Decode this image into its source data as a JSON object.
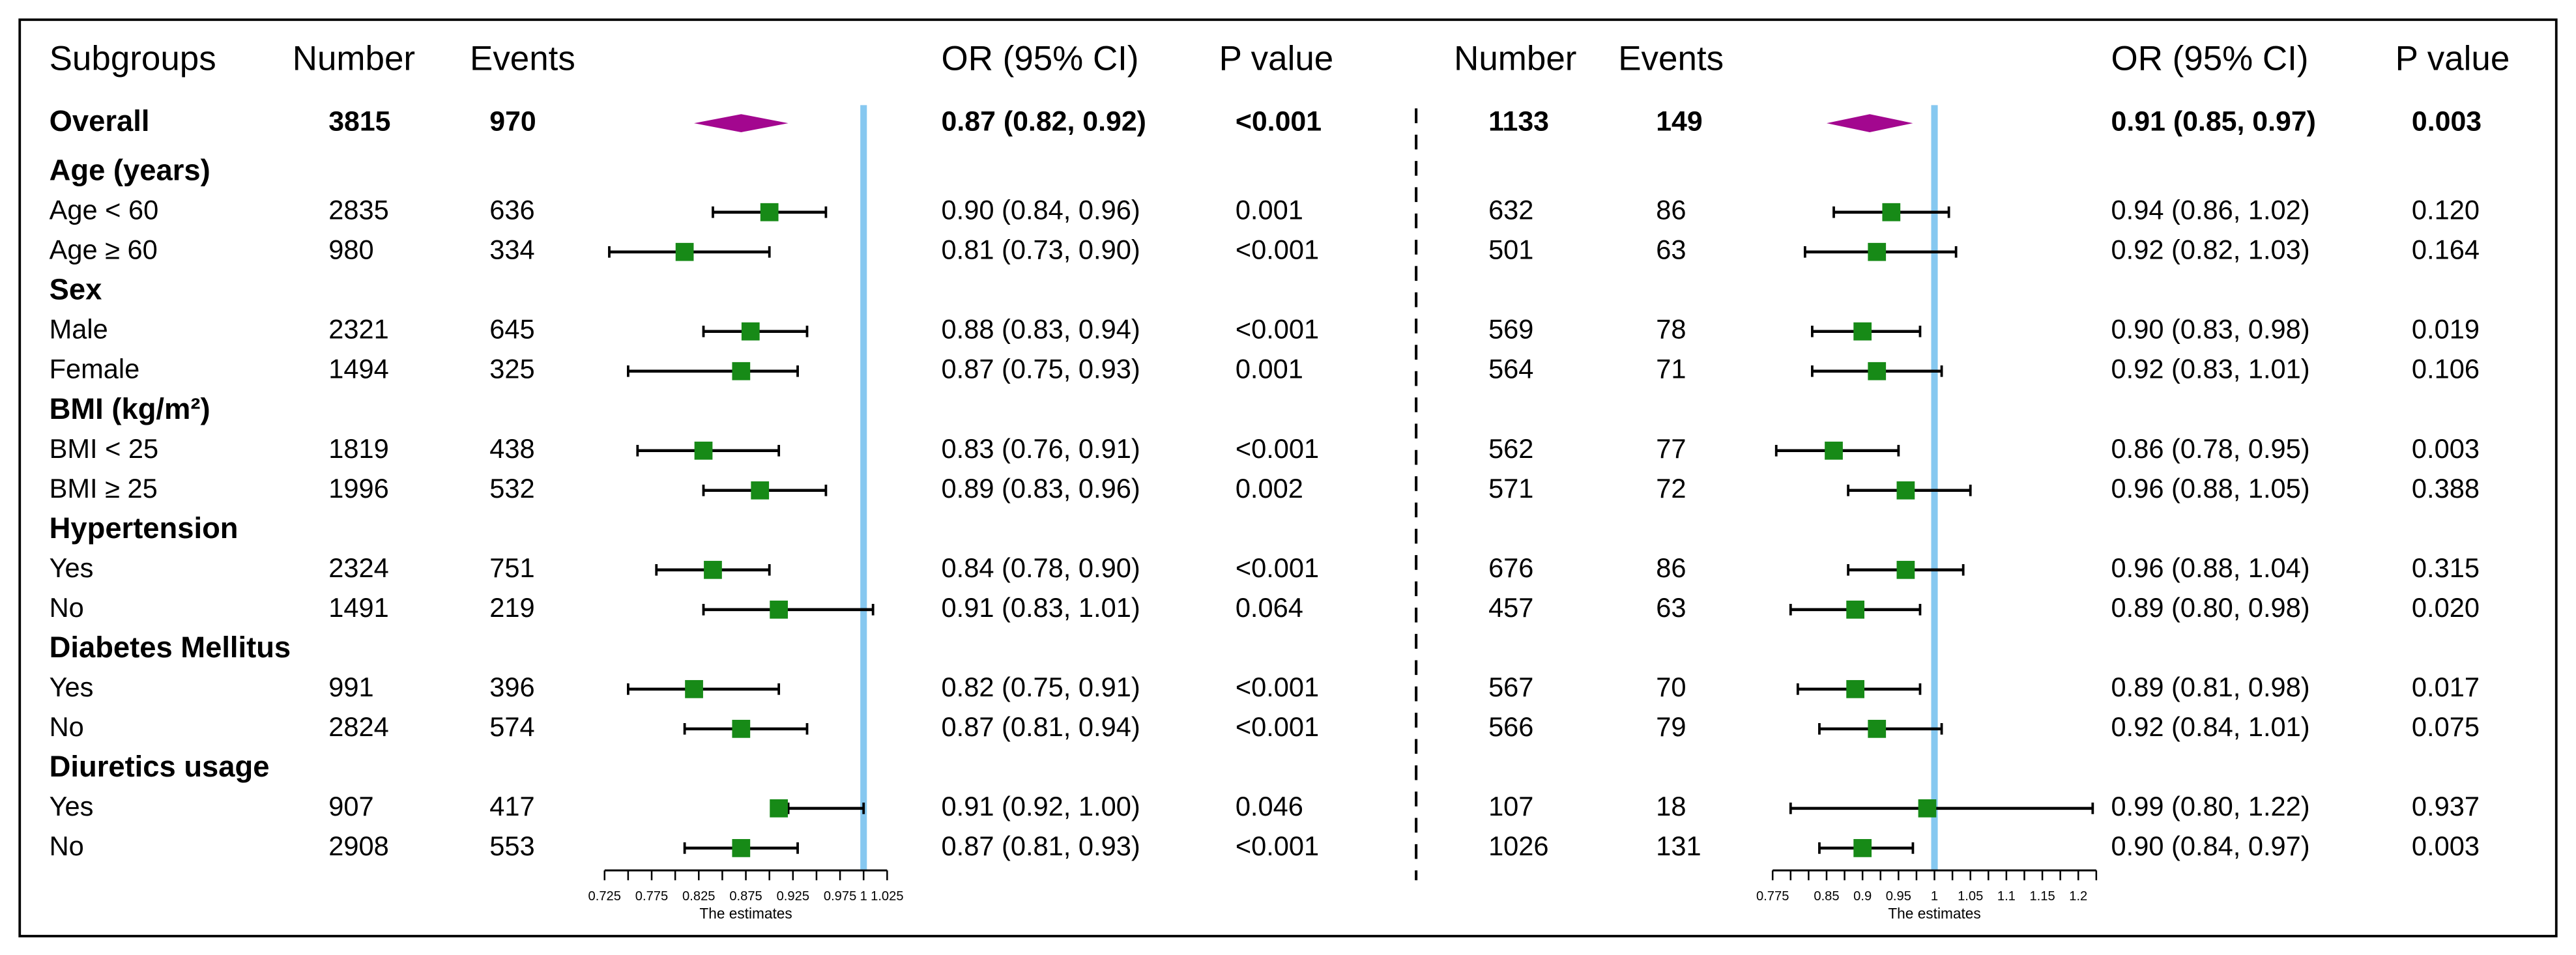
{
  "subgroups": {
    "header": "Subgroups",
    "rows": [
      {
        "label": "Overall",
        "bold": true
      },
      {
        "label": "Age (years)",
        "bold": true
      },
      {
        "label": "Age < 60",
        "bold": false
      },
      {
        "label": "Age ≥ 60",
        "bold": false
      },
      {
        "label": "Sex",
        "bold": true
      },
      {
        "label": "Male",
        "bold": false
      },
      {
        "label": "Female",
        "bold": false
      },
      {
        "label": "BMI (kg/m²)",
        "bold": true
      },
      {
        "label": "BMI < 25",
        "bold": false
      },
      {
        "label": "BMI ≥ 25",
        "bold": false
      },
      {
        "label": "Hypertension",
        "bold": true
      },
      {
        "label": "Yes",
        "bold": false
      },
      {
        "label": "No",
        "bold": false
      },
      {
        "label": "Diabetes Mellitus",
        "bold": true
      },
      {
        "label": "Yes",
        "bold": false
      },
      {
        "label": "No",
        "bold": false
      },
      {
        "label": "Diuretics usage",
        "bold": true
      },
      {
        "label": "Yes",
        "bold": false
      },
      {
        "label": "No",
        "bold": false
      }
    ]
  },
  "chart_data": [
    {
      "type": "forest",
      "headers": {
        "number": "Number",
        "events": "Events",
        "estimate": "OR (95% CI)",
        "p_value": "P value"
      },
      "number": [
        3815,
        null,
        2835,
        980,
        null,
        2321,
        1494,
        null,
        1819,
        1996,
        null,
        2324,
        1491,
        null,
        991,
        2824,
        null,
        907,
        2908
      ],
      "events": [
        970,
        null,
        636,
        334,
        null,
        645,
        325,
        null,
        438,
        532,
        null,
        751,
        219,
        null,
        396,
        574,
        null,
        417,
        553
      ],
      "values": [
        0.87,
        null,
        0.9,
        0.81,
        null,
        0.88,
        0.87,
        null,
        0.83,
        0.89,
        null,
        0.84,
        0.91,
        null,
        0.82,
        0.87,
        null,
        0.91,
        0.87
      ],
      "lower": [
        0.82,
        null,
        0.84,
        0.73,
        null,
        0.83,
        0.75,
        null,
        0.76,
        0.83,
        null,
        0.78,
        0.83,
        null,
        0.75,
        0.81,
        null,
        0.92,
        0.81
      ],
      "upper": [
        0.92,
        null,
        0.96,
        0.9,
        null,
        0.94,
        0.93,
        null,
        0.91,
        0.96,
        null,
        0.9,
        1.01,
        null,
        0.91,
        0.94,
        null,
        1.0,
        0.93
      ],
      "value_labels": [
        "0.87 (0.82, 0.92)",
        null,
        "0.90 (0.84, 0.96)",
        "0.81 (0.73, 0.90)",
        null,
        "0.88 (0.83, 0.94)",
        "0.87 (0.75, 0.93)",
        null,
        "0.83 (0.76, 0.91)",
        "0.89 (0.83, 0.96)",
        null,
        "0.84 (0.78, 0.90)",
        "0.91 (0.83, 1.01)",
        null,
        "0.82 (0.75, 0.91)",
        "0.87 (0.81, 0.94)",
        null,
        "0.91 (0.92, 1.00)",
        "0.87 (0.81, 0.93)"
      ],
      "p_values": [
        "<0.001",
        null,
        "0.001",
        "<0.001",
        null,
        "<0.001",
        "0.001",
        null,
        "<0.001",
        "0.002",
        null,
        "<0.001",
        "0.064",
        null,
        "<0.001",
        "<0.001",
        null,
        "0.046",
        "<0.001"
      ],
      "xlim": [
        0.725,
        1.025
      ],
      "xticks": [
        0.725,
        0.775,
        0.825,
        0.875,
        0.925,
        0.975,
        1,
        1.025
      ],
      "minor_xticks": [
        0.75,
        0.8,
        0.85,
        0.9,
        0.95
      ],
      "reference_line": 1,
      "xlabel": "The estimates",
      "color": "#178a17",
      "overall_color": "#a3078f",
      "reference_color": "#86c8f0"
    },
    {
      "type": "forest",
      "headers": {
        "number": "Number",
        "events": "Events",
        "estimate": "OR (95% CI)",
        "p_value": "P value"
      },
      "number": [
        1133,
        null,
        632,
        501,
        null,
        569,
        564,
        null,
        562,
        571,
        null,
        676,
        457,
        null,
        567,
        566,
        null,
        107,
        1026
      ],
      "events": [
        149,
        null,
        86,
        63,
        null,
        78,
        71,
        null,
        77,
        72,
        null,
        86,
        63,
        null,
        70,
        79,
        null,
        18,
        131
      ],
      "values": [
        0.91,
        null,
        0.94,
        0.92,
        null,
        0.9,
        0.92,
        null,
        0.86,
        0.96,
        null,
        0.96,
        0.89,
        null,
        0.89,
        0.92,
        null,
        0.99,
        0.9
      ],
      "lower": [
        0.85,
        null,
        0.86,
        0.82,
        null,
        0.83,
        0.83,
        null,
        0.78,
        0.88,
        null,
        0.88,
        0.8,
        null,
        0.81,
        0.84,
        null,
        0.8,
        0.84
      ],
      "upper": [
        0.97,
        null,
        1.02,
        1.03,
        null,
        0.98,
        1.01,
        null,
        0.95,
        1.05,
        null,
        1.04,
        0.98,
        null,
        0.98,
        1.01,
        null,
        1.22,
        0.97
      ],
      "value_labels": [
        "0.91 (0.85, 0.97)",
        null,
        "0.94 (0.86, 1.02)",
        "0.92 (0.82, 1.03)",
        null,
        "0.90 (0.83, 0.98)",
        "0.92 (0.83, 1.01)",
        null,
        "0.86 (0.78, 0.95)",
        "0.96 (0.88, 1.05)",
        null,
        "0.96 (0.88, 1.04)",
        "0.89 (0.80, 0.98)",
        null,
        "0.89 (0.81, 0.98)",
        "0.92 (0.84, 1.01)",
        null,
        "0.99 (0.80, 1.22)",
        "0.90 (0.84, 0.97)"
      ],
      "p_values": [
        "0.003",
        null,
        "0.120",
        "0.164",
        null,
        "0.019",
        "0.106",
        null,
        "0.003",
        "0.388",
        null,
        "0.315",
        "0.020",
        null,
        "0.017",
        "0.075",
        null,
        "0.937",
        "0.003"
      ],
      "xlim": [
        0.775,
        1.225
      ],
      "xticks": [
        0.775,
        0.85,
        0.9,
        0.95,
        1,
        1.05,
        1.1,
        1.15,
        1.2
      ],
      "minor_xticks": [
        0.8,
        0.825,
        0.875,
        0.925,
        0.975,
        1.025,
        1.075,
        1.125,
        1.175,
        1.225
      ],
      "reference_line": 1,
      "xlabel": "The estimates",
      "color": "#178a17",
      "overall_color": "#a3078f",
      "reference_color": "#86c8f0"
    }
  ]
}
